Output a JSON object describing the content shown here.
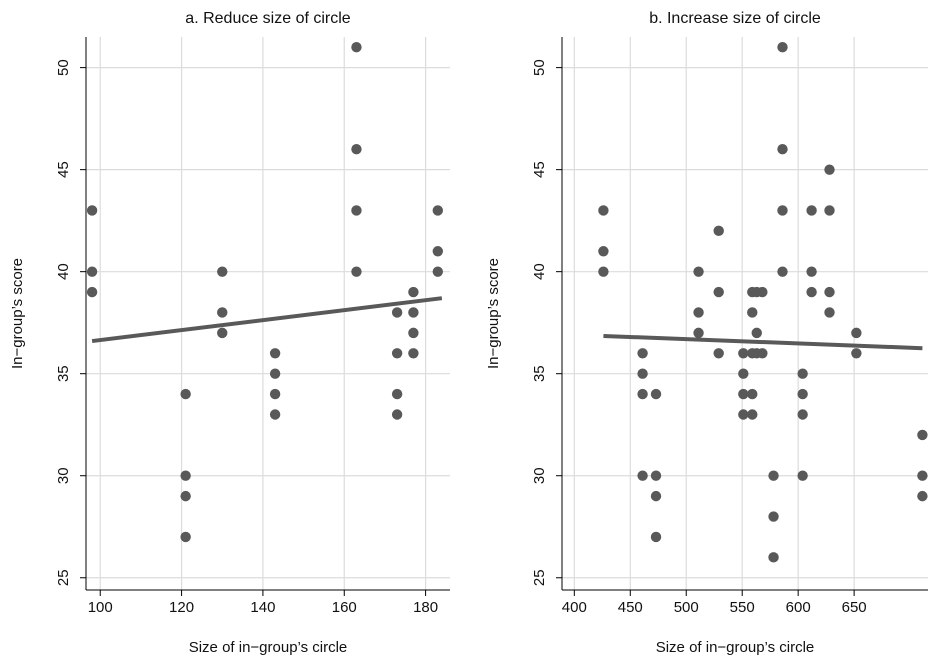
{
  "chart_data": [
    {
      "type": "scatter",
      "title": "a. Reduce size of circle",
      "x_label": "Size of in−group’s circle",
      "y_label": "In−group’s score",
      "xlim": [
        96.5,
        186
      ],
      "xticks": [
        100,
        120,
        140,
        160,
        180
      ],
      "ylim": [
        24.4,
        51.5
      ],
      "yticks": [
        25,
        30,
        35,
        40,
        45,
        50
      ],
      "grid": true,
      "points": {
        "color": "#595959",
        "x": [
          98,
          98,
          98,
          121,
          121,
          121,
          121,
          130,
          130,
          130,
          143,
          143,
          143,
          143,
          163,
          163,
          163,
          163,
          173,
          173,
          173,
          173,
          177,
          177,
          177,
          177,
          183,
          183,
          183
        ],
        "values": [
          43,
          40,
          39,
          34,
          30,
          29,
          27,
          40,
          38,
          37,
          36,
          35,
          34,
          33,
          51,
          46,
          43,
          40,
          38,
          36,
          34,
          33,
          39,
          38,
          37,
          36,
          43,
          41,
          40
        ]
      },
      "fit": {
        "color": "#595959",
        "x": [
          98,
          184
        ],
        "values": [
          36.6,
          38.7
        ]
      }
    },
    {
      "type": "scatter",
      "title": "b. Increase size of circle",
      "x_label": "Size of in−group’s circle",
      "y_label": "In−group’s score",
      "xlim": [
        389,
        716
      ],
      "xticks": [
        400,
        450,
        500,
        550,
        600,
        650
      ],
      "ylim": [
        24.4,
        51.5
      ],
      "yticks": [
        25,
        30,
        35,
        40,
        45,
        50
      ],
      "grid": true,
      "points": {
        "color": "#595959",
        "x": [
          426,
          426,
          426,
          461,
          461,
          461,
          461,
          473,
          473,
          473,
          473,
          511,
          511,
          511,
          529,
          529,
          529,
          551,
          551,
          551,
          551,
          559,
          559,
          559,
          559,
          559,
          563,
          563,
          563,
          568,
          568,
          578,
          578,
          578,
          586,
          586,
          586,
          586,
          612,
          612,
          612,
          604,
          604,
          604,
          604,
          628,
          628,
          628,
          628,
          652,
          652,
          711,
          711,
          711
        ],
        "values": [
          43,
          41,
          40,
          36,
          35,
          34,
          30,
          34,
          30,
          29,
          27,
          40,
          38,
          37,
          42,
          39,
          36,
          36,
          35,
          34,
          33,
          39,
          38,
          36,
          34,
          33,
          39,
          37,
          36,
          39,
          36,
          30,
          28,
          26,
          51,
          46,
          43,
          40,
          43,
          40,
          39,
          35,
          34,
          33,
          30,
          45,
          43,
          39,
          38,
          37,
          36,
          32,
          30,
          29
        ]
      },
      "fit": {
        "color": "#595959",
        "x": [
          426,
          711
        ],
        "values": [
          36.85,
          36.25
        ]
      }
    }
  ]
}
